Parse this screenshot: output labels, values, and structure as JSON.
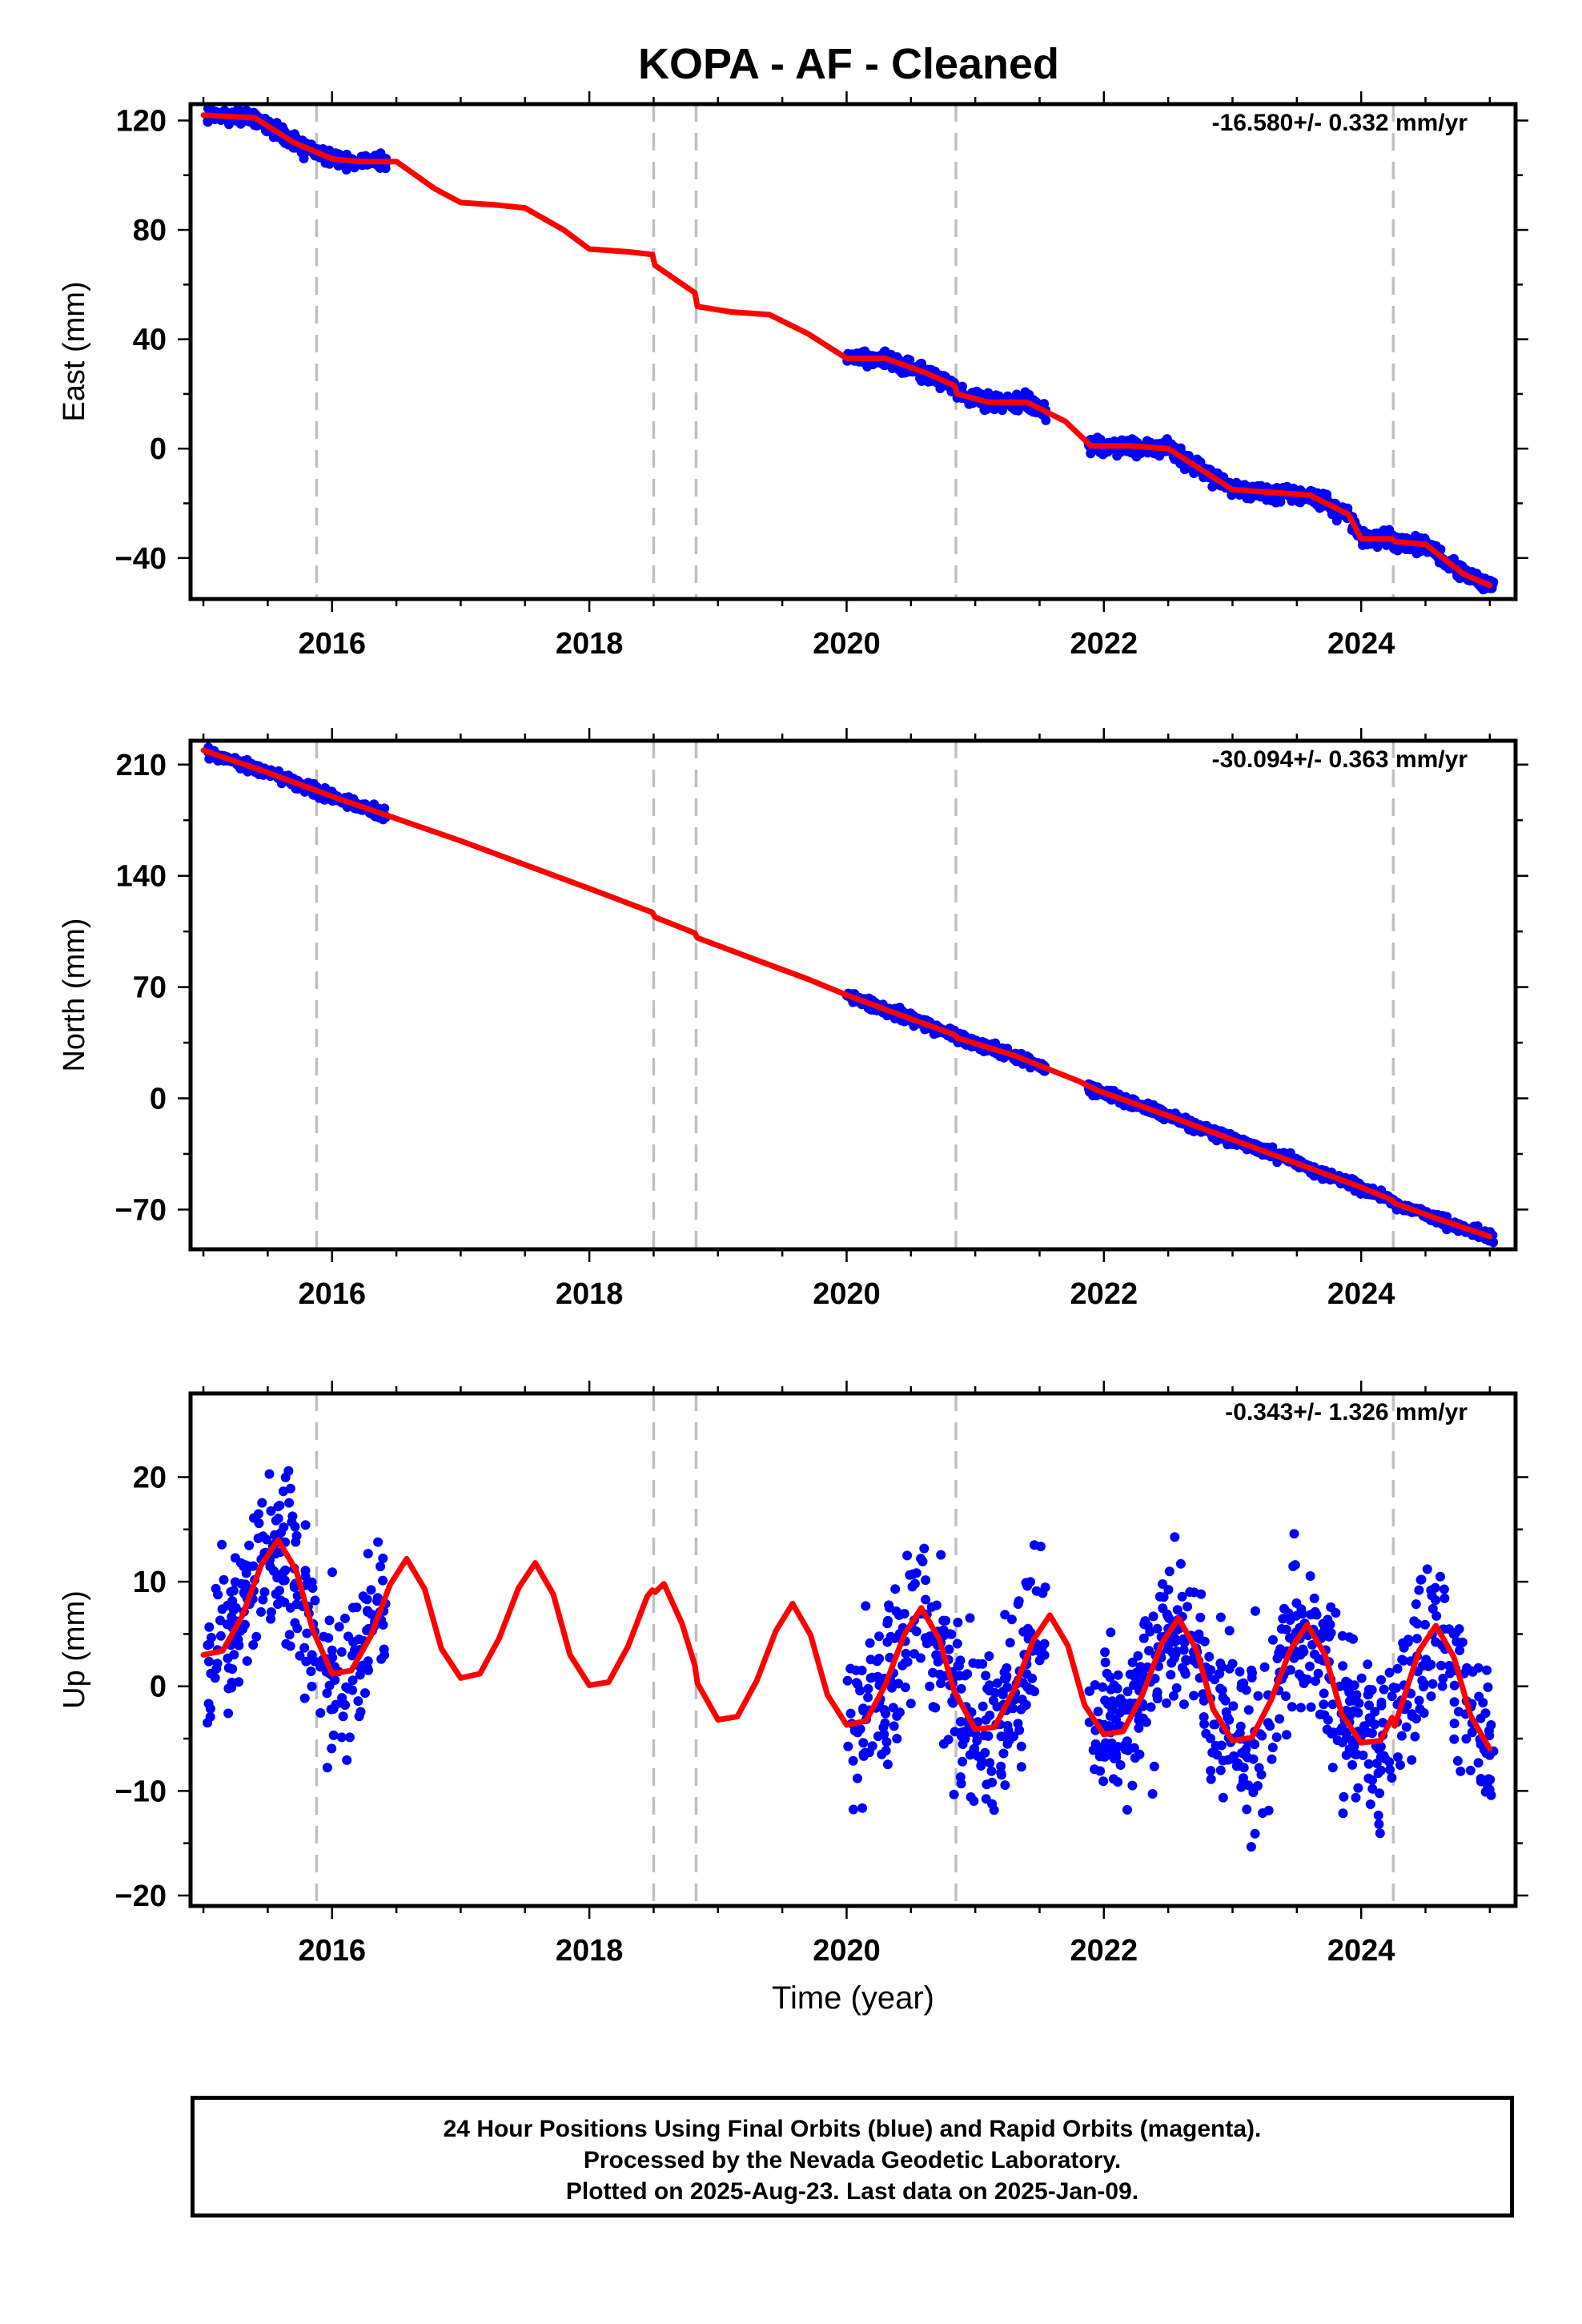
{
  "chart_data": {
    "type": "scatter",
    "title": "KOPA  - AF - Cleaned",
    "xlabel": "Time (year)",
    "xlim": [
      2014.9,
      2025.2
    ],
    "x_ticks": [
      2016,
      2018,
      2020,
      2022,
      2024
    ],
    "x_tick_labels": [
      "2016",
      "2018",
      "2020",
      "2022",
      "2024"
    ],
    "grid": false,
    "steps": [
      2015.88,
      2018.5,
      2018.83,
      2020.85,
      2024.25
    ],
    "data_segments": [
      [
        2015.03,
        2016.42
      ],
      [
        2020.0,
        2021.55
      ],
      [
        2021.88,
        2025.03
      ]
    ],
    "series_colors": {
      "final_orbits": "#0000ff",
      "model_fit": "#ff0000",
      "steps": "#c0c0c0"
    },
    "panels": [
      {
        "ylabel": "East (mm)",
        "ylim": [
          -55,
          126
        ],
        "y_ticks": [
          120,
          80,
          40,
          0,
          -40
        ],
        "y_tick_labels": [
          "120",
          "80",
          "40",
          "0",
          "−40"
        ],
        "rate_label": "-16.580+/- 0.332 mm/yr",
        "scatter": {
          "noise": 1.4
        },
        "model_fit": {
          "x": [
            2015.0,
            2015.4,
            2015.7,
            2016.0,
            2016.2,
            2016.5,
            2016.8,
            2017.0,
            2017.3,
            2017.5,
            2017.8,
            2018.0,
            2018.3,
            2018.49,
            2018.51,
            2018.82,
            2018.84,
            2019.1,
            2019.4,
            2019.7,
            2020.0,
            2020.3,
            2020.6,
            2020.84,
            2020.86,
            2021.1,
            2021.4,
            2021.7,
            2021.9,
            2022.2,
            2022.5,
            2022.8,
            2023.0,
            2023.3,
            2023.6,
            2023.9,
            2024.0,
            2024.24,
            2024.26,
            2024.5,
            2024.8,
            2025.0
          ],
          "y": [
            122,
            121,
            112,
            106,
            105,
            105,
            95,
            90,
            89,
            88,
            80,
            73,
            72,
            71,
            67,
            57,
            52,
            50,
            49,
            42,
            33,
            33,
            28,
            23,
            20,
            17,
            17,
            10,
            1,
            1,
            0,
            -9,
            -15,
            -16,
            -17,
            -24,
            -33,
            -33,
            -34,
            -35,
            -46,
            -50
          ]
        }
      },
      {
        "ylabel": "North (mm)",
        "ylim": [
          -95,
          225
        ],
        "y_ticks": [
          210,
          140,
          70,
          0,
          -70
        ],
        "y_tick_labels": [
          "210",
          "140",
          "70",
          "0",
          "−70"
        ],
        "rate_label": "-30.094+/- 0.363 mm/yr",
        "scatter": {
          "noise": 1.6
        },
        "model_fit": {
          "x": [
            2015.0,
            2015.5,
            2016.0,
            2016.5,
            2017.0,
            2017.5,
            2018.0,
            2018.49,
            2018.51,
            2018.82,
            2018.84,
            2019.3,
            2019.7,
            2020.0,
            2020.5,
            2020.84,
            2020.86,
            2021.3,
            2021.8,
            2021.95,
            2022.5,
            2023.0,
            2023.5,
            2024.0,
            2024.24,
            2024.26,
            2024.6,
            2025.0
          ],
          "y": [
            219,
            205,
            190,
            176,
            162,
            147,
            132,
            117,
            114,
            104,
            101,
            87,
            75,
            65,
            50,
            40,
            38,
            27,
            11,
            5,
            -11,
            -26,
            -41,
            -56,
            -64,
            -66,
            -76,
            -87
          ]
        }
      },
      {
        "ylabel": "Up (mm)",
        "ylim": [
          -21,
          28
        ],
        "y_ticks": [
          20,
          10,
          0,
          -10,
          -20
        ],
        "y_tick_labels": [
          "20",
          "10",
          "0",
          "−10",
          "−20"
        ],
        "rate_label": "-0.343+/- 1.326 mm/yr",
        "scatter": {
          "noise": 3.8
        },
        "model_fit": {
          "x": [
            2015.0,
            2015.15,
            2015.3,
            2015.45,
            2015.58,
            2015.72,
            2015.85,
            2016.0,
            2016.15,
            2016.3,
            2016.45,
            2016.58,
            2016.72,
            2016.85,
            2017.0,
            2017.15,
            2017.3,
            2017.45,
            2017.58,
            2017.72,
            2017.85,
            2018.0,
            2018.15,
            2018.3,
            2018.45,
            2018.49,
            2018.51,
            2018.58,
            2018.72,
            2018.82,
            2018.84,
            2019.0,
            2019.15,
            2019.3,
            2019.45,
            2019.58,
            2019.72,
            2019.85,
            2020.0,
            2020.15,
            2020.3,
            2020.45,
            2020.58,
            2020.72,
            2020.84,
            2020.86,
            2021.0,
            2021.15,
            2021.3,
            2021.45,
            2021.58,
            2021.72,
            2021.85,
            2022.0,
            2022.15,
            2022.3,
            2022.45,
            2022.58,
            2022.72,
            2022.85,
            2023.0,
            2023.15,
            2023.3,
            2023.45,
            2023.58,
            2023.72,
            2023.85,
            2024.0,
            2024.15,
            2024.24,
            2024.26,
            2024.45,
            2024.58,
            2024.72,
            2024.85,
            2025.0
          ],
          "y": [
            3,
            3.4,
            6.7,
            11.6,
            14,
            11.1,
            5.4,
            1.2,
            1.5,
            4.8,
            9.7,
            12.2,
            9.3,
            3.6,
            0.8,
            1.2,
            4.6,
            9.4,
            11.8,
            8.8,
            3.0,
            0.1,
            0.4,
            3.8,
            8.6,
            9.2,
            9.0,
            9.8,
            6.0,
            2.0,
            0.3,
            -3.2,
            -2.9,
            0.5,
            5.3,
            7.9,
            4.9,
            -0.8,
            -3.7,
            -3.3,
            0.1,
            5.0,
            7.5,
            4.5,
            -0.6,
            -1.0,
            -4.1,
            -3.9,
            -0.4,
            4.4,
            6.8,
            3.9,
            -1.8,
            -4.6,
            -4.3,
            -0.8,
            4.1,
            6.5,
            3.5,
            -2.2,
            -5.2,
            -4.9,
            -1.3,
            3.5,
            5.9,
            3.0,
            -2.7,
            -5.4,
            -5.2,
            -3.0,
            -3.8,
            3.4,
            5.8,
            2.8,
            -2.8,
            -6.0
          ]
        }
      }
    ]
  },
  "footer": {
    "line1": "24 Hour Positions Using Final Orbits (blue) and Rapid Orbits (magenta).",
    "line2": "Processed by the Nevada Geodetic Laboratory.",
    "line3": "Plotted on 2025-Aug-23. Last data on 2025-Jan-09."
  }
}
